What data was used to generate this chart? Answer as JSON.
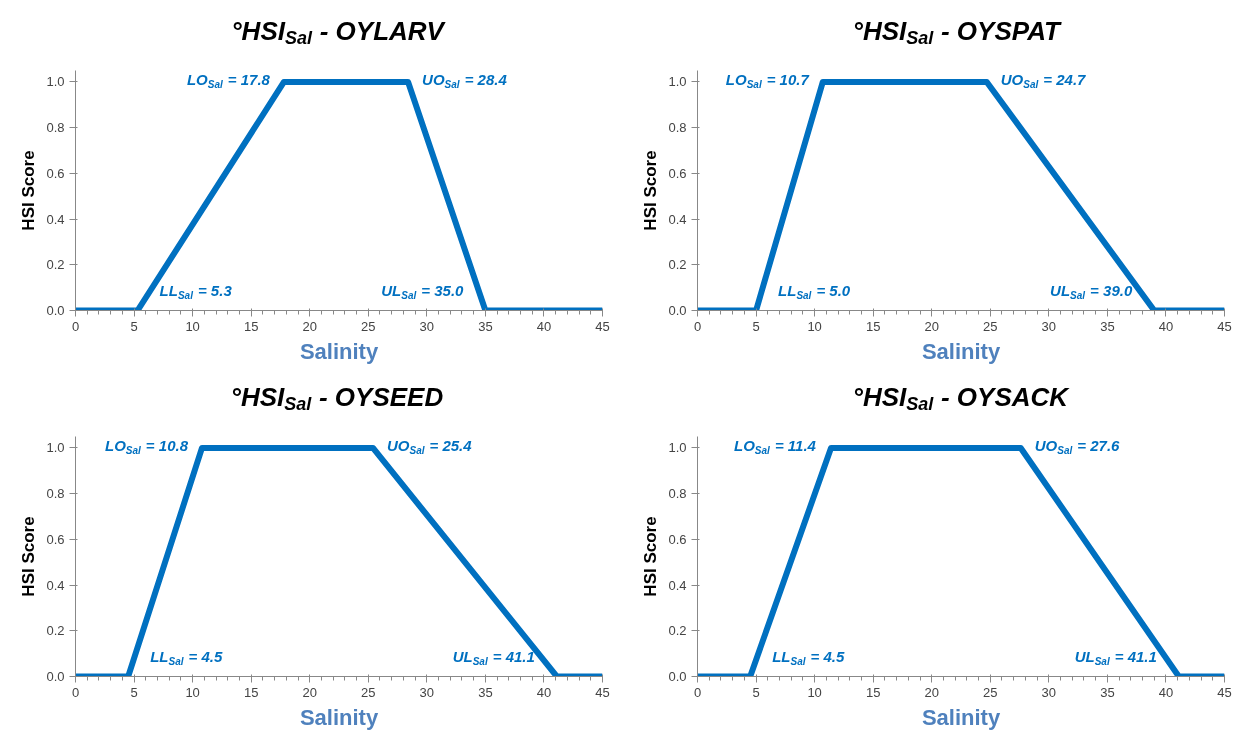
{
  "chart_data": [
    {
      "type": "line",
      "title": "°HSI$_{Sal}$ - OYLARV",
      "xlabel": "Salinity",
      "ylabel": "HSI Score",
      "x": [
        0,
        5.3,
        17.8,
        28.4,
        35.0,
        45
      ],
      "values": [
        0,
        0,
        1,
        1,
        0,
        0
      ],
      "color": "#0070c0",
      "xlim": [
        0,
        45
      ],
      "xticks": [
        0,
        5,
        10,
        15,
        20,
        25,
        30,
        35,
        40,
        45
      ],
      "ylim": [
        0,
        1.05
      ],
      "yticks": [
        {
          "value": 0,
          "label": "0.0"
        },
        {
          "value": 0.2,
          "label": "0.2"
        },
        {
          "value": 0.4,
          "label": "0.4"
        },
        {
          "value": 0.6,
          "label": "0.6"
        },
        {
          "value": 0.8,
          "label": "0.8"
        },
        {
          "value": 1,
          "label": "1.0"
        }
      ],
      "grid": false,
      "marker": "none",
      "line_style": "solid",
      "annotations": [
        {
          "text": "LO$_{Sal}$ = 17.8",
          "x": 17.8,
          "y": 1
        },
        {
          "text": "UO$_{Sal}$ = 28.4",
          "x": 28.4,
          "y": 1
        },
        {
          "text": "LL$_{Sal}$ = 5.3",
          "x": 5.3,
          "y": 0
        },
        {
          "text": "UL$_{Sal}$ = 35.0",
          "x": 35.0,
          "y": 0
        }
      ]
    },
    {
      "type": "line",
      "title": "°HSI$_{Sal}$ - OYSPAT",
      "xlabel": "Salinity",
      "ylabel": "HSI Score",
      "x": [
        0,
        5.0,
        10.7,
        24.7,
        39.0,
        45
      ],
      "values": [
        0,
        0,
        1,
        1,
        0,
        0
      ],
      "color": "#0070c0",
      "xlim": [
        0,
        45
      ],
      "xticks": [
        0,
        5,
        10,
        15,
        20,
        25,
        30,
        35,
        40,
        45
      ],
      "ylim": [
        0,
        1.05
      ],
      "yticks": [
        {
          "value": 0,
          "label": "0.0"
        },
        {
          "value": 0.2,
          "label": "0.2"
        },
        {
          "value": 0.4,
          "label": "0.4"
        },
        {
          "value": 0.6,
          "label": "0.6"
        },
        {
          "value": 0.8,
          "label": "0.8"
        },
        {
          "value": 1,
          "label": "1.0"
        }
      ],
      "grid": false,
      "marker": "none",
      "line_style": "solid",
      "annotations": [
        {
          "text": "LO$_{Sal}$ = 10.7",
          "x": 10.7,
          "y": 1
        },
        {
          "text": "UO$_{Sal}$ = 24.7",
          "x": 24.7,
          "y": 1
        },
        {
          "text": "LL$_{Sal}$ = 5.0",
          "x": 5.0,
          "y": 0
        },
        {
          "text": "UL$_{Sal}$ = 39.0",
          "x": 39.0,
          "y": 0
        }
      ]
    },
    {
      "type": "line",
      "title": "°HSI$_{Sal}$ - OYSEED",
      "xlabel": "Salinity",
      "ylabel": "HSI Score",
      "x": [
        0,
        4.5,
        10.8,
        25.4,
        41.1,
        45
      ],
      "values": [
        0,
        0,
        1,
        1,
        0,
        0
      ],
      "color": "#0070c0",
      "xlim": [
        0,
        45
      ],
      "xticks": [
        0,
        5,
        10,
        15,
        20,
        25,
        30,
        35,
        40,
        45
      ],
      "ylim": [
        0,
        1.05
      ],
      "yticks": [
        {
          "value": 0,
          "label": "0.0"
        },
        {
          "value": 0.2,
          "label": "0.2"
        },
        {
          "value": 0.4,
          "label": "0.4"
        },
        {
          "value": 0.6,
          "label": "0.6"
        },
        {
          "value": 0.8,
          "label": "0.8"
        },
        {
          "value": 1,
          "label": "1.0"
        }
      ],
      "grid": false,
      "marker": "none",
      "line_style": "solid",
      "annotations": [
        {
          "text": "LO$_{Sal}$ = 10.8",
          "x": 10.8,
          "y": 1
        },
        {
          "text": "UO$_{Sal}$ = 25.4",
          "x": 25.4,
          "y": 1
        },
        {
          "text": "LL$_{Sal}$ = 4.5",
          "x": 4.5,
          "y": 0
        },
        {
          "text": "UL$_{Sal}$ = 41.1",
          "x": 41.1,
          "y": 0
        }
      ]
    },
    {
      "type": "line",
      "title": "°HSI$_{Sal}$ - OYSACK",
      "xlabel": "Salinity",
      "ylabel": "HSI Score",
      "x": [
        0,
        4.5,
        11.4,
        27.6,
        41.1,
        45
      ],
      "values": [
        0,
        0,
        1,
        1,
        0,
        0
      ],
      "color": "#0070c0",
      "xlim": [
        0,
        45
      ],
      "xticks": [
        0,
        5,
        10,
        15,
        20,
        25,
        30,
        35,
        40,
        45
      ],
      "ylim": [
        0,
        1.05
      ],
      "yticks": [
        {
          "value": 0,
          "label": "0.0"
        },
        {
          "value": 0.2,
          "label": "0.2"
        },
        {
          "value": 0.4,
          "label": "0.4"
        },
        {
          "value": 0.6,
          "label": "0.6"
        },
        {
          "value": 0.8,
          "label": "0.8"
        },
        {
          "value": 1,
          "label": "1.0"
        }
      ],
      "grid": false,
      "marker": "none",
      "line_style": "solid",
      "annotations": [
        {
          "text": "LO$_{Sal}$ = 11.4",
          "x": 11.4,
          "y": 1
        },
        {
          "text": "UO$_{Sal}$ = 27.6",
          "x": 27.6,
          "y": 1
        },
        {
          "text": "LL$_{Sal}$ = 4.5",
          "x": 4.5,
          "y": 0
        },
        {
          "text": "UL$_{Sal}$ = 41.1",
          "x": 41.1,
          "y": 0
        }
      ]
    }
  ]
}
